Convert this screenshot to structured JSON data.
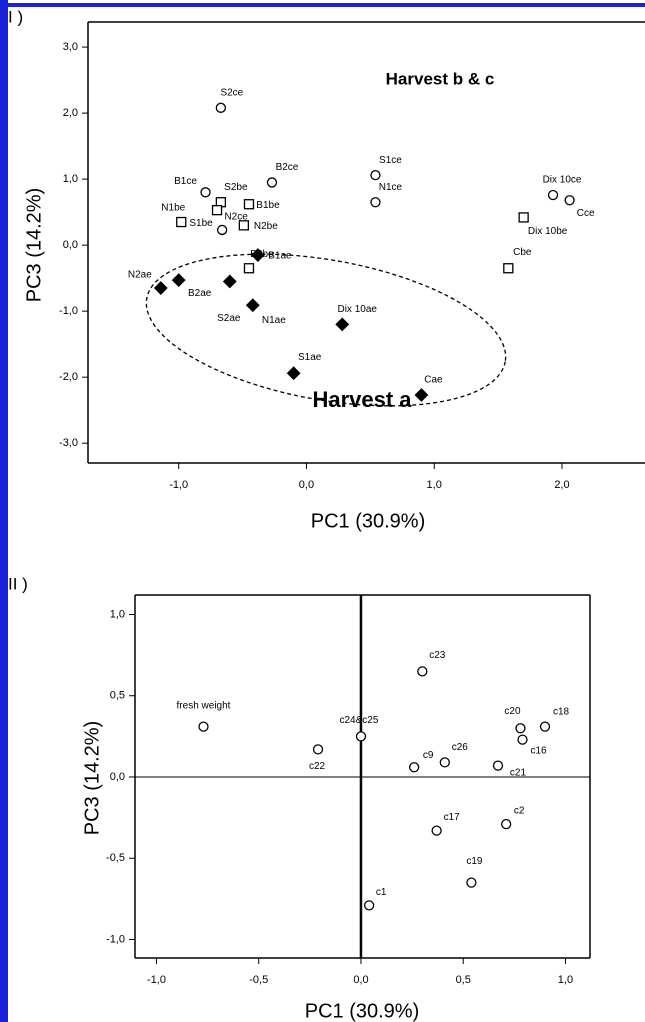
{
  "chart_data": [
    {
      "type": "scatter",
      "panel_label": "I )",
      "annotations": [
        "Harvest b & c",
        "Harvest a"
      ],
      "x_label": "PC1 (30.9%)",
      "y_label": "PC3 (14.2%)",
      "xlim": [
        -1.71,
        2.65
      ],
      "ylim": [
        -3.3,
        3.38
      ],
      "xticks": [
        {
          "value": -1,
          "label": "-1,0"
        },
        {
          "value": 0,
          "label": "0,0"
        },
        {
          "value": 1,
          "label": "1,0"
        },
        {
          "value": 2,
          "label": "2,0"
        }
      ],
      "yticks": [
        {
          "value": 3,
          "label": "3,0"
        },
        {
          "value": 2,
          "label": "2,0"
        },
        {
          "value": 1,
          "label": "1,0"
        },
        {
          "value": 0,
          "label": "0,0"
        },
        {
          "value": -1,
          "label": "-1,0"
        },
        {
          "value": -2,
          "label": "-2,0"
        },
        {
          "value": -3,
          "label": "-3,0"
        }
      ],
      "zero_lines": false,
      "series": [
        {
          "marker": "circle",
          "filled": false,
          "color": "#000000",
          "labels": [
            "S2ce",
            "B1ce",
            "B2ce",
            "S1ce",
            "N1ce",
            "N2ce",
            "Dix 10ce",
            "Cce"
          ],
          "x": [
            -0.67,
            -0.79,
            -0.27,
            0.54,
            0.54,
            -0.66,
            1.93,
            2.06
          ],
          "values": [
            2.08,
            0.8,
            0.95,
            1.06,
            0.65,
            0.23,
            0.76,
            0.68
          ]
        },
        {
          "marker": "square",
          "filled": false,
          "color": "#000000",
          "labels": [
            "N1be",
            "S2be",
            "S1be",
            "B1be",
            "N2be",
            "B2be",
            "Dix 10be",
            "Cbe"
          ],
          "x": [
            -0.98,
            -0.67,
            -0.7,
            -0.45,
            -0.49,
            -0.45,
            1.7,
            1.58
          ],
          "values": [
            0.35,
            0.65,
            0.53,
            0.62,
            0.3,
            -0.35,
            0.42,
            -0.35
          ]
        },
        {
          "marker": "diamond",
          "filled": true,
          "color": "#000000",
          "labels": [
            "N2ae",
            "B2ae",
            "B1ae",
            "S2ae",
            "N1ae",
            "Dix 10ae",
            "S1ae",
            "Cae"
          ],
          "x": [
            -1.14,
            -1.0,
            -0.38,
            -0.6,
            -0.42,
            0.28,
            -0.1,
            0.9
          ],
          "values": [
            -0.65,
            -0.53,
            -0.15,
            -0.55,
            -0.91,
            -1.2,
            -1.94,
            -2.27
          ]
        }
      ]
    },
    {
      "type": "scatter",
      "panel_label": "II )",
      "x_label": "PC1 (30.9%)",
      "y_label": "PC3 (14.2%)",
      "xlim": [
        -1.105,
        1.12
      ],
      "ylim": [
        -1.114,
        1.12
      ],
      "xticks": [
        {
          "value": -1,
          "label": "-1,0"
        },
        {
          "value": -0.5,
          "label": "-0,5"
        },
        {
          "value": 0,
          "label": "0,0"
        },
        {
          "value": 0.5,
          "label": "0,5"
        },
        {
          "value": 1,
          "label": "1,0"
        }
      ],
      "yticks": [
        {
          "value": 1,
          "label": "1,0"
        },
        {
          "value": 0.5,
          "label": "0,5"
        },
        {
          "value": 0,
          "label": "0,0"
        },
        {
          "value": -0.5,
          "label": "-0,5"
        },
        {
          "value": -1,
          "label": "-1,0"
        }
      ],
      "zero_lines": true,
      "series": [
        {
          "marker": "circle",
          "filled": false,
          "color": "#000000",
          "labels": [
            "fresh weight",
            "c22",
            "c24&c25",
            "c23",
            "c9",
            "c26",
            "c20",
            "c16",
            "c18",
            "c21",
            "c2",
            "c17",
            "c19",
            "c1"
          ],
          "x": [
            -0.77,
            -0.21,
            0.0,
            0.3,
            0.26,
            0.41,
            0.78,
            0.79,
            0.9,
            0.67,
            0.71,
            0.37,
            0.54,
            0.04
          ],
          "values": [
            0.31,
            0.17,
            0.25,
            0.65,
            0.06,
            0.09,
            0.3,
            0.23,
            0.31,
            0.07,
            -0.29,
            -0.33,
            -0.65,
            -0.79
          ]
        }
      ]
    }
  ]
}
